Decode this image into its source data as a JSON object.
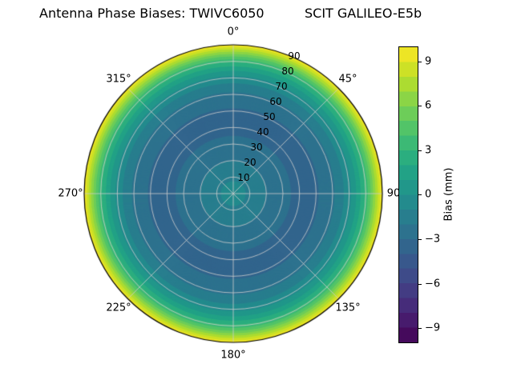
{
  "header": {
    "title_left": "Antenna Phase Biases: TWIVC6050",
    "title_right": "SCIT GALILEO-E5b"
  },
  "chart_data": {
    "type": "heatmap",
    "projection": "polar",
    "title": "Antenna Phase Biases: TWIVC6050      SCIT GALILEO-E5b",
    "colormap": "viridis",
    "colormap_stops": [
      "#440154",
      "#482475",
      "#414487",
      "#355f8d",
      "#2a788e",
      "#21918c",
      "#22a884",
      "#44bf70",
      "#7ad151",
      "#bddf26",
      "#fde725"
    ],
    "grid": true,
    "theta_tick_labels": [
      "0°",
      "45°",
      "90",
      "135°",
      "180°",
      "225°",
      "270°",
      "315°"
    ],
    "r_tick_labels": [
      "10",
      "20",
      "30",
      "40",
      "50",
      "60",
      "70",
      "80",
      "90"
    ],
    "r_max": 90,
    "radial_profile": {
      "description": "Azimuthally symmetric phase bias vs zenith angle (deg), estimated from ring colors",
      "zenith_deg": [
        0,
        5,
        10,
        15,
        20,
        25,
        30,
        35,
        40,
        45,
        50,
        55,
        60,
        65,
        70,
        75,
        80,
        85,
        90
      ],
      "bias_mm": [
        -0.5,
        -0.8,
        -1.2,
        -1.6,
        -2.0,
        -2.4,
        -2.7,
        -3.0,
        -3.2,
        -3.2,
        -3.1,
        -2.8,
        -2.2,
        -1.4,
        -0.4,
        1.2,
        3.2,
        6.2,
        9.8
      ]
    },
    "colorbar": {
      "label": "Bias (mm)",
      "vmin": -10,
      "vmax": 10,
      "tick_labels": [
        "9",
        "6",
        "3",
        "0",
        "−3",
        "−6",
        "−9"
      ]
    }
  }
}
